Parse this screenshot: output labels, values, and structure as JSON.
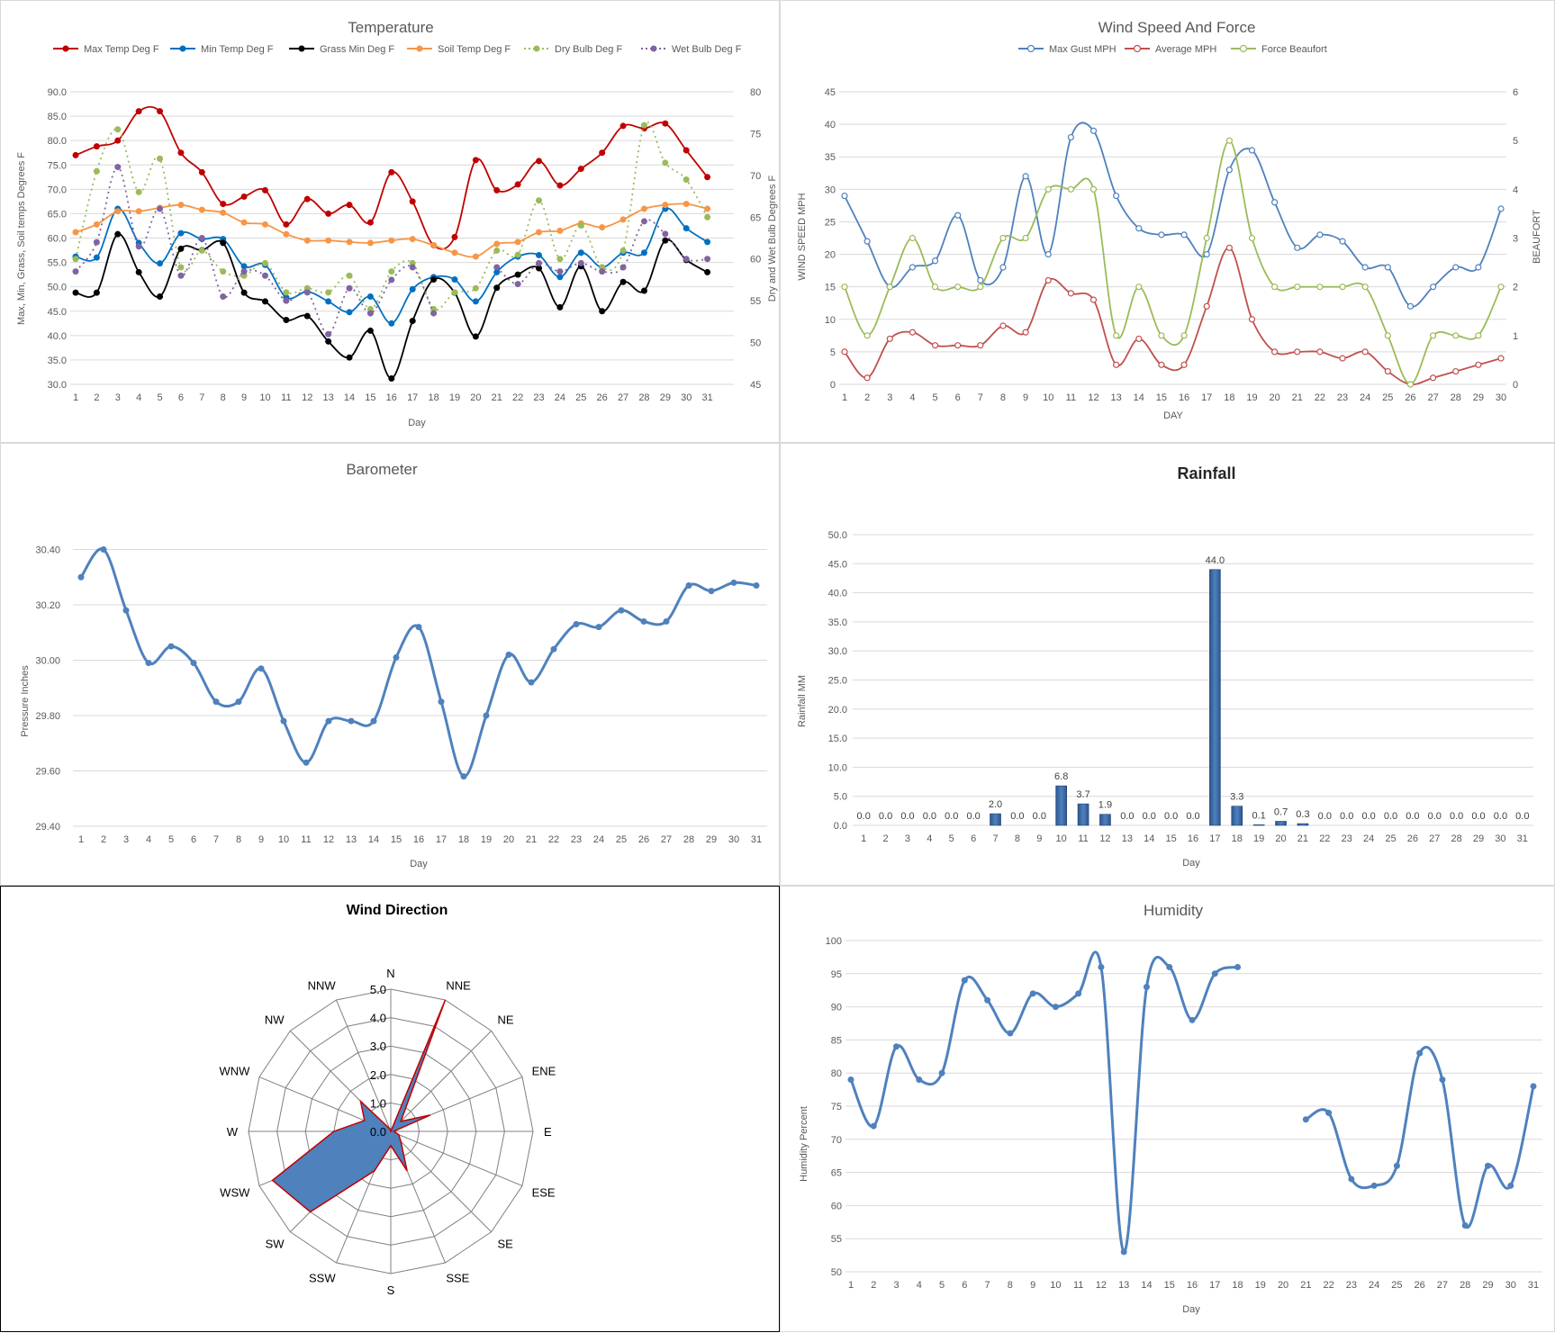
{
  "charts": {
    "temperature": {
      "type": "line",
      "title": "Temperature",
      "xlabel": "Day",
      "ylabel_left": "Max, Min, Grass, Soil temps Degrees F",
      "ylabel_right": "Dry and Wet Bulb Degrees F",
      "x": [
        1,
        2,
        3,
        4,
        5,
        6,
        7,
        8,
        9,
        10,
        11,
        12,
        13,
        14,
        15,
        16,
        17,
        18,
        19,
        20,
        21,
        22,
        23,
        24,
        25,
        26,
        27,
        28,
        29,
        30,
        31
      ],
      "ylim_left": [
        30,
        90
      ],
      "yticks_left": [
        "30.0",
        "35.0",
        "40.0",
        "45.0",
        "50.0",
        "55.0",
        "60.0",
        "65.0",
        "70.0",
        "75.0",
        "80.0",
        "85.0",
        "90.0"
      ],
      "ylim_right": [
        45,
        80
      ],
      "yticks_right": [
        "45",
        "50",
        "55",
        "60",
        "65",
        "70",
        "75",
        "80"
      ],
      "legend_position": "top",
      "series": [
        {
          "name": "Max Temp Deg F",
          "color": "#c00000",
          "axis": "left",
          "dashed": false,
          "values": [
            77,
            78.8,
            80,
            86,
            86,
            77.5,
            73.5,
            67,
            68.5,
            69.8,
            62.8,
            68,
            65,
            66.8,
            63.2,
            73.5,
            67.5,
            58.5,
            60.2,
            76,
            69.8,
            71,
            75.8,
            70.8,
            74.2,
            77.5,
            83,
            82.5,
            83.5,
            78,
            72.5
          ]
        },
        {
          "name": "Min Temp Deg F",
          "color": "#0070c0",
          "axis": "left",
          "dashed": false,
          "values": [
            56.2,
            56,
            66,
            59,
            54.8,
            61,
            59.8,
            59.8,
            54.2,
            54.5,
            47.8,
            49,
            47,
            44.8,
            48,
            42.5,
            49.5,
            52,
            51.5,
            47,
            53,
            56.2,
            56.5,
            52,
            57,
            54,
            57,
            57,
            66,
            62,
            59.2
          ]
        },
        {
          "name": "Grass Min Deg F",
          "color": "#000000",
          "axis": "left",
          "dashed": false,
          "values": [
            48.8,
            48.8,
            60.8,
            53,
            48,
            57.8,
            57.5,
            59,
            48.8,
            47,
            43.2,
            44,
            38.8,
            35.5,
            41,
            31.2,
            43,
            51.5,
            48.8,
            39.8,
            49.8,
            52.5,
            53.8,
            45.8,
            54.2,
            45,
            51,
            49.2,
            59.5,
            55.5,
            53
          ]
        },
        {
          "name": "Soil Temp Deg F",
          "color": "#f79646",
          "axis": "left",
          "dashed": false,
          "values": [
            61.2,
            62.8,
            65.5,
            65.5,
            66.2,
            66.8,
            65.8,
            65.2,
            63.2,
            62.8,
            60.8,
            59.5,
            59.5,
            59.2,
            59,
            59.5,
            59.8,
            58.5,
            57,
            56.2,
            58.8,
            59.2,
            61.2,
            61.5,
            63,
            62.2,
            63.8,
            66,
            66.8,
            67,
            66
          ]
        },
        {
          "name": "Dry Bulb Deg F",
          "color": "#9bbb59",
          "axis": "right",
          "dashed": true,
          "values": [
            60,
            70.5,
            75.5,
            68,
            72,
            59,
            61,
            58.5,
            58,
            59.5,
            56,
            56.5,
            56,
            58,
            54,
            58.5,
            59.5,
            54,
            56,
            56.5,
            61,
            60.5,
            67,
            60,
            64,
            59,
            61,
            76,
            71.5,
            69.5,
            65
          ]
        },
        {
          "name": "Wet Bulb Deg F",
          "color": "#8064a2",
          "axis": "right",
          "dashed": true,
          "values": [
            58.5,
            62,
            71,
            61.5,
            66,
            58,
            62.5,
            55.5,
            58.5,
            58,
            55,
            56,
            51,
            56.5,
            53.5,
            57.5,
            59,
            53.5,
            null,
            null,
            59,
            57,
            59.5,
            58.5,
            59.5,
            58.5,
            59,
            64.5,
            63,
            60,
            60
          ]
        }
      ]
    },
    "wind_speed": {
      "type": "line",
      "title": "Wind Speed And Force",
      "xlabel": "DAY",
      "ylabel_left": "WIND SPEED MPH",
      "ylabel_right": "BEAUFORT",
      "x": [
        1,
        2,
        3,
        4,
        5,
        6,
        7,
        8,
        9,
        10,
        11,
        12,
        13,
        14,
        15,
        16,
        17,
        18,
        19,
        20,
        21,
        22,
        23,
        24,
        25,
        26,
        27,
        28,
        29,
        30
      ],
      "ylim_left": [
        0,
        45
      ],
      "yticks_left": [
        "0",
        "5",
        "10",
        "15",
        "20",
        "25",
        "30",
        "35",
        "40",
        "45"
      ],
      "ylim_right": [
        0,
        6
      ],
      "yticks_right": [
        "0",
        "1",
        "2",
        "3",
        "4",
        "5",
        "6"
      ],
      "legend_position": "top",
      "series": [
        {
          "name": "Max Gust MPH",
          "color": "#4f81bd",
          "axis": "left",
          "values": [
            29,
            22,
            15,
            18,
            19,
            26,
            16,
            18,
            32,
            20,
            38,
            39,
            29,
            24,
            23,
            23,
            20,
            33,
            36,
            28,
            21,
            23,
            22,
            18,
            18,
            12,
            15,
            18,
            18,
            27
          ]
        },
        {
          "name": "Average MPH",
          "color": "#c0504d",
          "axis": "left",
          "values": [
            5,
            1,
            7,
            8,
            6,
            6,
            6,
            9,
            8,
            16,
            14,
            13,
            3,
            7,
            3,
            3,
            12,
            21,
            10,
            5,
            5,
            5,
            4,
            5,
            2,
            0,
            1,
            2,
            3,
            4
          ]
        },
        {
          "name": "Force Beaufort",
          "color": "#9bbb59",
          "axis": "right",
          "values": [
            2,
            1,
            2,
            3,
            2,
            2,
            2,
            3,
            3,
            4,
            4,
            4,
            1,
            2,
            1,
            1,
            3,
            5,
            3,
            2,
            2,
            2,
            2,
            2,
            1,
            0,
            1,
            1,
            1,
            2
          ]
        }
      ]
    },
    "barometer": {
      "type": "line",
      "title": "Barometer",
      "xlabel": "Day",
      "ylabel": "Pressure Inches",
      "x": [
        1,
        2,
        3,
        4,
        5,
        6,
        7,
        8,
        9,
        10,
        11,
        12,
        13,
        14,
        15,
        16,
        17,
        18,
        19,
        20,
        21,
        22,
        23,
        24,
        25,
        26,
        27,
        28,
        29,
        30,
        31
      ],
      "ylim": [
        29.4,
        30.5
      ],
      "yticks": [
        "29.40",
        "29.60",
        "29.80",
        "30.00",
        "30.20",
        "30.40"
      ],
      "series": [
        {
          "name": "",
          "color": "#4f81bd",
          "values": [
            30.3,
            30.4,
            30.18,
            29.99,
            30.05,
            29.99,
            29.85,
            29.85,
            29.97,
            29.78,
            29.63,
            29.78,
            29.78,
            29.78,
            30.01,
            30.12,
            29.85,
            29.58,
            29.8,
            30.02,
            29.92,
            30.04,
            30.13,
            30.12,
            30.18,
            30.14,
            30.14,
            30.27,
            30.25,
            30.28,
            30.27
          ]
        }
      ]
    },
    "rainfall": {
      "type": "bar",
      "title": "Rainfall",
      "xlabel": "Day",
      "ylabel": "Rainfall MM",
      "categories": [
        "1",
        "2",
        "3",
        "4",
        "5",
        "6",
        "7",
        "8",
        "9",
        "10",
        "11",
        "12",
        "13",
        "14",
        "15",
        "16",
        "17",
        "18",
        "19",
        "20",
        "21",
        "22",
        "23",
        "24",
        "25",
        "26",
        "27",
        "28",
        "29",
        "30",
        "31"
      ],
      "values": [
        0,
        0,
        0,
        0,
        0,
        0,
        2,
        0,
        0,
        6.8,
        3.7,
        1.9,
        0,
        0,
        0,
        0,
        44,
        3.3,
        0.1,
        0.7,
        0.3,
        0,
        0,
        0,
        0,
        0,
        0,
        0,
        0,
        0,
        0
      ],
      "labels": [
        "0.0",
        "0.0",
        "0.0",
        "0.0",
        "0.0",
        "0.0",
        "2.0",
        "0.0",
        "0.0",
        "6.8",
        "3.7",
        "1.9",
        "0.0",
        "0.0",
        "0.0",
        "0.0",
        "44.0",
        "3.3",
        "0.1",
        "0.7",
        "0.3",
        "0.0",
        "0.0",
        "0.0",
        "0.0",
        "0.0",
        "0.0",
        "0.0",
        "0.0",
        "0.0",
        "0.0"
      ],
      "ylim": [
        0,
        50
      ],
      "yticks": [
        "0.0",
        "5.0",
        "10.0",
        "15.0",
        "20.0",
        "25.0",
        "30.0",
        "35.0",
        "40.0",
        "45.0",
        "50.0"
      ],
      "color": "#4f81bd"
    },
    "wind_direction": {
      "type": "radar",
      "title": "Wind Direction",
      "directions": [
        "N",
        "NNE",
        "NE",
        "ENE",
        "E",
        "ESE",
        "SE",
        "SSE",
        "S",
        "SSW",
        "SW",
        "WSW",
        "W",
        "WNW",
        "NW",
        "NNW"
      ],
      "values": [
        0,
        5,
        0.5,
        1.5,
        0.1,
        0.3,
        0.5,
        1.5,
        0.5,
        1.5,
        4,
        4.5,
        2,
        1,
        1.5,
        0.1
      ],
      "ylim": [
        0,
        5
      ],
      "rticks": [
        "0.0",
        "1.0",
        "2.0",
        "3.0",
        "4.0",
        "5.0"
      ],
      "fill_color": "#4f81bd",
      "line_color": "#c00000"
    },
    "humidity": {
      "type": "line",
      "title": "Humidity",
      "xlabel": "Day",
      "ylabel": "Humidity Percent",
      "x": [
        1,
        2,
        3,
        4,
        5,
        6,
        7,
        8,
        9,
        10,
        11,
        12,
        13,
        14,
        15,
        16,
        17,
        18,
        19,
        20,
        21,
        22,
        23,
        24,
        25,
        26,
        27,
        28,
        29,
        30,
        31
      ],
      "ylim": [
        50,
        100
      ],
      "yticks": [
        "50",
        "55",
        "60",
        "65",
        "70",
        "75",
        "80",
        "85",
        "90",
        "95",
        "100"
      ],
      "series": [
        {
          "name": "",
          "color": "#4f81bd",
          "values": [
            79,
            72,
            84,
            79,
            80,
            94,
            91,
            86,
            92,
            90,
            92,
            96,
            53,
            93,
            96,
            88,
            95,
            96,
            null,
            null,
            73,
            74,
            64,
            63,
            66,
            83,
            79,
            57,
            66,
            63,
            78
          ]
        }
      ]
    }
  }
}
